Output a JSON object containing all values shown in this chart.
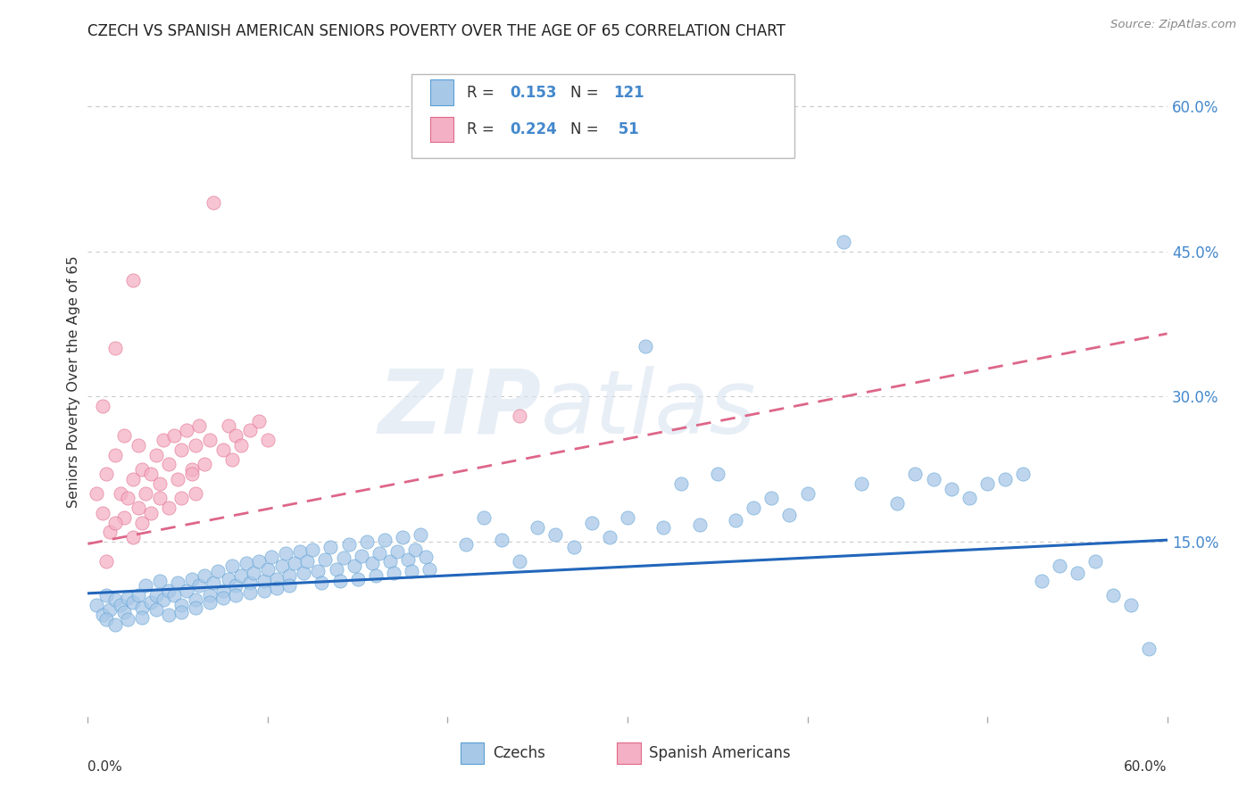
{
  "title": "CZECH VS SPANISH AMERICAN SENIORS POVERTY OVER THE AGE OF 65 CORRELATION CHART",
  "source": "Source: ZipAtlas.com",
  "ylabel": "Seniors Poverty Over the Age of 65",
  "right_ytick_vals": [
    0.15,
    0.3,
    0.45,
    0.6
  ],
  "right_ytick_labels": [
    "15.0%",
    "30.0%",
    "45.0%",
    "60.0%"
  ],
  "xmin": 0.0,
  "xmax": 0.6,
  "ymin": -0.03,
  "ymax": 0.66,
  "czech_color": "#a8c8e8",
  "spanish_color": "#f4b0c4",
  "czech_edge_color": "#5a9fd4",
  "spanish_edge_color": "#e06888",
  "czech_line_color": "#2266bb",
  "spanish_line_color": "#dd6688",
  "watermark_color": "#d0ddf0",
  "background_color": "#ffffff",
  "grid_color": "#cccccc",
  "title_color": "#222222",
  "right_axis_color": "#4488cc",
  "czech_line_start_y": 0.097,
  "czech_line_end_y": 0.152,
  "spanish_line_start_y": 0.148,
  "spanish_line_end_y": 0.365,
  "czech_scatter": [
    [
      0.005,
      0.085
    ],
    [
      0.008,
      0.075
    ],
    [
      0.01,
      0.095
    ],
    [
      0.012,
      0.08
    ],
    [
      0.015,
      0.09
    ],
    [
      0.01,
      0.07
    ],
    [
      0.018,
      0.085
    ],
    [
      0.02,
      0.078
    ],
    [
      0.022,
      0.092
    ],
    [
      0.015,
      0.065
    ],
    [
      0.025,
      0.088
    ],
    [
      0.028,
      0.095
    ],
    [
      0.03,
      0.082
    ],
    [
      0.022,
      0.07
    ],
    [
      0.032,
      0.105
    ],
    [
      0.035,
      0.088
    ],
    [
      0.038,
      0.095
    ],
    [
      0.03,
      0.072
    ],
    [
      0.04,
      0.11
    ],
    [
      0.042,
      0.09
    ],
    [
      0.045,
      0.1
    ],
    [
      0.038,
      0.08
    ],
    [
      0.048,
      0.095
    ],
    [
      0.05,
      0.108
    ],
    [
      0.052,
      0.085
    ],
    [
      0.045,
      0.075
    ],
    [
      0.055,
      0.1
    ],
    [
      0.058,
      0.112
    ],
    [
      0.06,
      0.09
    ],
    [
      0.052,
      0.078
    ],
    [
      0.062,
      0.105
    ],
    [
      0.065,
      0.115
    ],
    [
      0.068,
      0.095
    ],
    [
      0.06,
      0.082
    ],
    [
      0.07,
      0.108
    ],
    [
      0.072,
      0.12
    ],
    [
      0.075,
      0.1
    ],
    [
      0.068,
      0.088
    ],
    [
      0.078,
      0.112
    ],
    [
      0.08,
      0.125
    ],
    [
      0.082,
      0.105
    ],
    [
      0.075,
      0.092
    ],
    [
      0.085,
      0.115
    ],
    [
      0.088,
      0.128
    ],
    [
      0.09,
      0.108
    ],
    [
      0.082,
      0.095
    ],
    [
      0.092,
      0.118
    ],
    [
      0.095,
      0.13
    ],
    [
      0.098,
      0.11
    ],
    [
      0.09,
      0.098
    ],
    [
      0.1,
      0.122
    ],
    [
      0.102,
      0.135
    ],
    [
      0.105,
      0.112
    ],
    [
      0.098,
      0.1
    ],
    [
      0.108,
      0.125
    ],
    [
      0.11,
      0.138
    ],
    [
      0.112,
      0.115
    ],
    [
      0.105,
      0.102
    ],
    [
      0.115,
      0.128
    ],
    [
      0.118,
      0.14
    ],
    [
      0.12,
      0.118
    ],
    [
      0.112,
      0.105
    ],
    [
      0.122,
      0.13
    ],
    [
      0.125,
      0.142
    ],
    [
      0.128,
      0.12
    ],
    [
      0.13,
      0.108
    ],
    [
      0.132,
      0.132
    ],
    [
      0.135,
      0.145
    ],
    [
      0.138,
      0.122
    ],
    [
      0.14,
      0.11
    ],
    [
      0.142,
      0.134
    ],
    [
      0.145,
      0.148
    ],
    [
      0.148,
      0.125
    ],
    [
      0.15,
      0.112
    ],
    [
      0.152,
      0.136
    ],
    [
      0.155,
      0.15
    ],
    [
      0.158,
      0.128
    ],
    [
      0.16,
      0.115
    ],
    [
      0.162,
      0.138
    ],
    [
      0.165,
      0.152
    ],
    [
      0.168,
      0.13
    ],
    [
      0.17,
      0.118
    ],
    [
      0.172,
      0.14
    ],
    [
      0.175,
      0.155
    ],
    [
      0.178,
      0.132
    ],
    [
      0.18,
      0.12
    ],
    [
      0.182,
      0.142
    ],
    [
      0.185,
      0.158
    ],
    [
      0.188,
      0.135
    ],
    [
      0.19,
      0.122
    ],
    [
      0.21,
      0.148
    ],
    [
      0.22,
      0.175
    ],
    [
      0.23,
      0.152
    ],
    [
      0.24,
      0.13
    ],
    [
      0.25,
      0.165
    ],
    [
      0.26,
      0.158
    ],
    [
      0.27,
      0.145
    ],
    [
      0.28,
      0.17
    ],
    [
      0.29,
      0.155
    ],
    [
      0.3,
      0.175
    ],
    [
      0.31,
      0.352
    ],
    [
      0.32,
      0.165
    ],
    [
      0.33,
      0.21
    ],
    [
      0.34,
      0.168
    ],
    [
      0.35,
      0.22
    ],
    [
      0.36,
      0.172
    ],
    [
      0.37,
      0.185
    ],
    [
      0.38,
      0.195
    ],
    [
      0.39,
      0.178
    ],
    [
      0.4,
      0.2
    ],
    [
      0.42,
      0.46
    ],
    [
      0.43,
      0.21
    ],
    [
      0.45,
      0.19
    ],
    [
      0.46,
      0.22
    ],
    [
      0.47,
      0.215
    ],
    [
      0.48,
      0.205
    ],
    [
      0.49,
      0.195
    ],
    [
      0.5,
      0.21
    ],
    [
      0.51,
      0.215
    ],
    [
      0.52,
      0.22
    ],
    [
      0.53,
      0.11
    ],
    [
      0.54,
      0.125
    ],
    [
      0.55,
      0.118
    ],
    [
      0.56,
      0.13
    ],
    [
      0.57,
      0.095
    ],
    [
      0.58,
      0.085
    ],
    [
      0.59,
      0.04
    ]
  ],
  "spanish_scatter": [
    [
      0.005,
      0.2
    ],
    [
      0.008,
      0.18
    ],
    [
      0.01,
      0.22
    ],
    [
      0.012,
      0.16
    ],
    [
      0.015,
      0.24
    ],
    [
      0.01,
      0.13
    ],
    [
      0.018,
      0.2
    ],
    [
      0.02,
      0.175
    ],
    [
      0.008,
      0.29
    ],
    [
      0.015,
      0.17
    ],
    [
      0.025,
      0.215
    ],
    [
      0.022,
      0.195
    ],
    [
      0.02,
      0.26
    ],
    [
      0.028,
      0.185
    ],
    [
      0.025,
      0.155
    ],
    [
      0.03,
      0.225
    ],
    [
      0.028,
      0.25
    ],
    [
      0.032,
      0.2
    ],
    [
      0.03,
      0.17
    ],
    [
      0.035,
      0.22
    ],
    [
      0.038,
      0.24
    ],
    [
      0.04,
      0.21
    ],
    [
      0.035,
      0.18
    ],
    [
      0.042,
      0.255
    ],
    [
      0.04,
      0.195
    ],
    [
      0.045,
      0.23
    ],
    [
      0.048,
      0.26
    ],
    [
      0.05,
      0.215
    ],
    [
      0.045,
      0.185
    ],
    [
      0.052,
      0.245
    ],
    [
      0.055,
      0.265
    ],
    [
      0.058,
      0.225
    ],
    [
      0.052,
      0.195
    ],
    [
      0.06,
      0.25
    ],
    [
      0.058,
      0.22
    ],
    [
      0.062,
      0.27
    ],
    [
      0.065,
      0.23
    ],
    [
      0.068,
      0.255
    ],
    [
      0.06,
      0.2
    ],
    [
      0.07,
      0.5
    ],
    [
      0.075,
      0.245
    ],
    [
      0.078,
      0.27
    ],
    [
      0.08,
      0.235
    ],
    [
      0.082,
      0.26
    ],
    [
      0.085,
      0.25
    ],
    [
      0.09,
      0.265
    ],
    [
      0.095,
      0.275
    ],
    [
      0.1,
      0.255
    ],
    [
      0.015,
      0.35
    ],
    [
      0.025,
      0.42
    ],
    [
      0.24,
      0.28
    ]
  ]
}
